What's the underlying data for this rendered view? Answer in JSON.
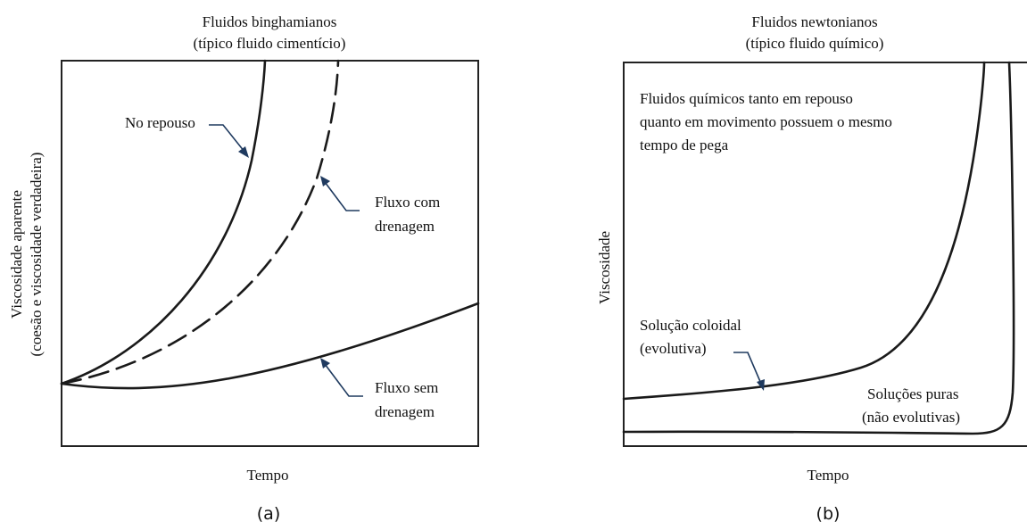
{
  "panel_a": {
    "title_line1": "Fluidos binghamianos",
    "title_line2": "(típico fluido cimentício)",
    "ylabel_line1": "Viscosidade aparente",
    "ylabel_line2": "(coesão e viscosidade verdadeira)",
    "xlabel": "Tempo",
    "caption": "(a)",
    "label_repouso": "No repouso",
    "label_com_line1": "Fluxo com",
    "label_com_line2": "drenagem",
    "label_sem_line1": "Fluxo sem",
    "label_sem_line2": "drenagem"
  },
  "panel_b": {
    "title_line1": "Fluidos newtonianos",
    "title_line2": "(típico fluido químico)",
    "ylabel": "Viscosidade",
    "xlabel": "Tempo",
    "caption": "(b)",
    "note_line1": "Fluidos químicos tanto em repouso",
    "note_line2": "quanto em movimento possuem o mesmo",
    "note_line3": "tempo de pega",
    "label_coloidal_line1": "Solução coloidal",
    "label_coloidal_line2": "(evolutiva)",
    "label_puras_line1": "Soluções puras",
    "label_puras_line2": "(não evolutivas)"
  },
  "colors": {
    "curve": "#1a1a1a",
    "arrow": "#1f3a5f"
  }
}
